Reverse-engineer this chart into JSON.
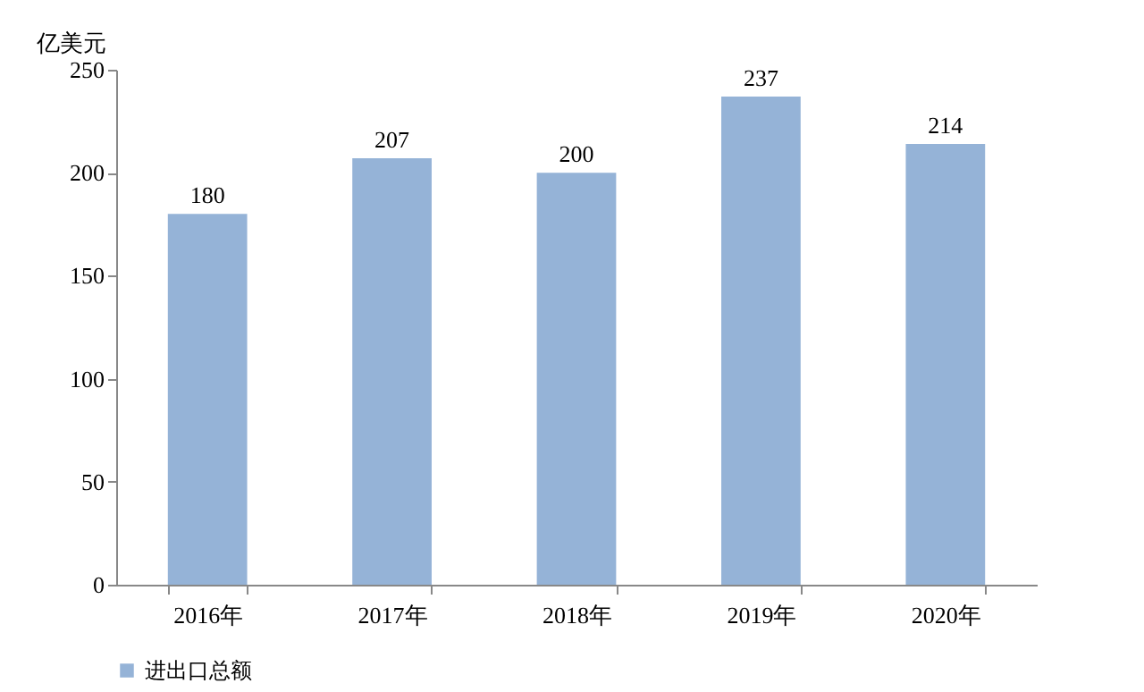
{
  "chart_data": {
    "type": "bar",
    "ylabel": "亿美元",
    "categories": [
      "2016年",
      "2017年",
      "2018年",
      "2019年",
      "2020年"
    ],
    "series": [
      {
        "name": "进出口总额",
        "color": "#95b3d7",
        "values": [
          180,
          207,
          200,
          237,
          214
        ]
      }
    ],
    "ylim": [
      0,
      250
    ],
    "yticks": [
      0,
      50,
      100,
      150,
      200,
      250
    ],
    "data_labels": true,
    "grid": false,
    "legend": "bottom"
  }
}
